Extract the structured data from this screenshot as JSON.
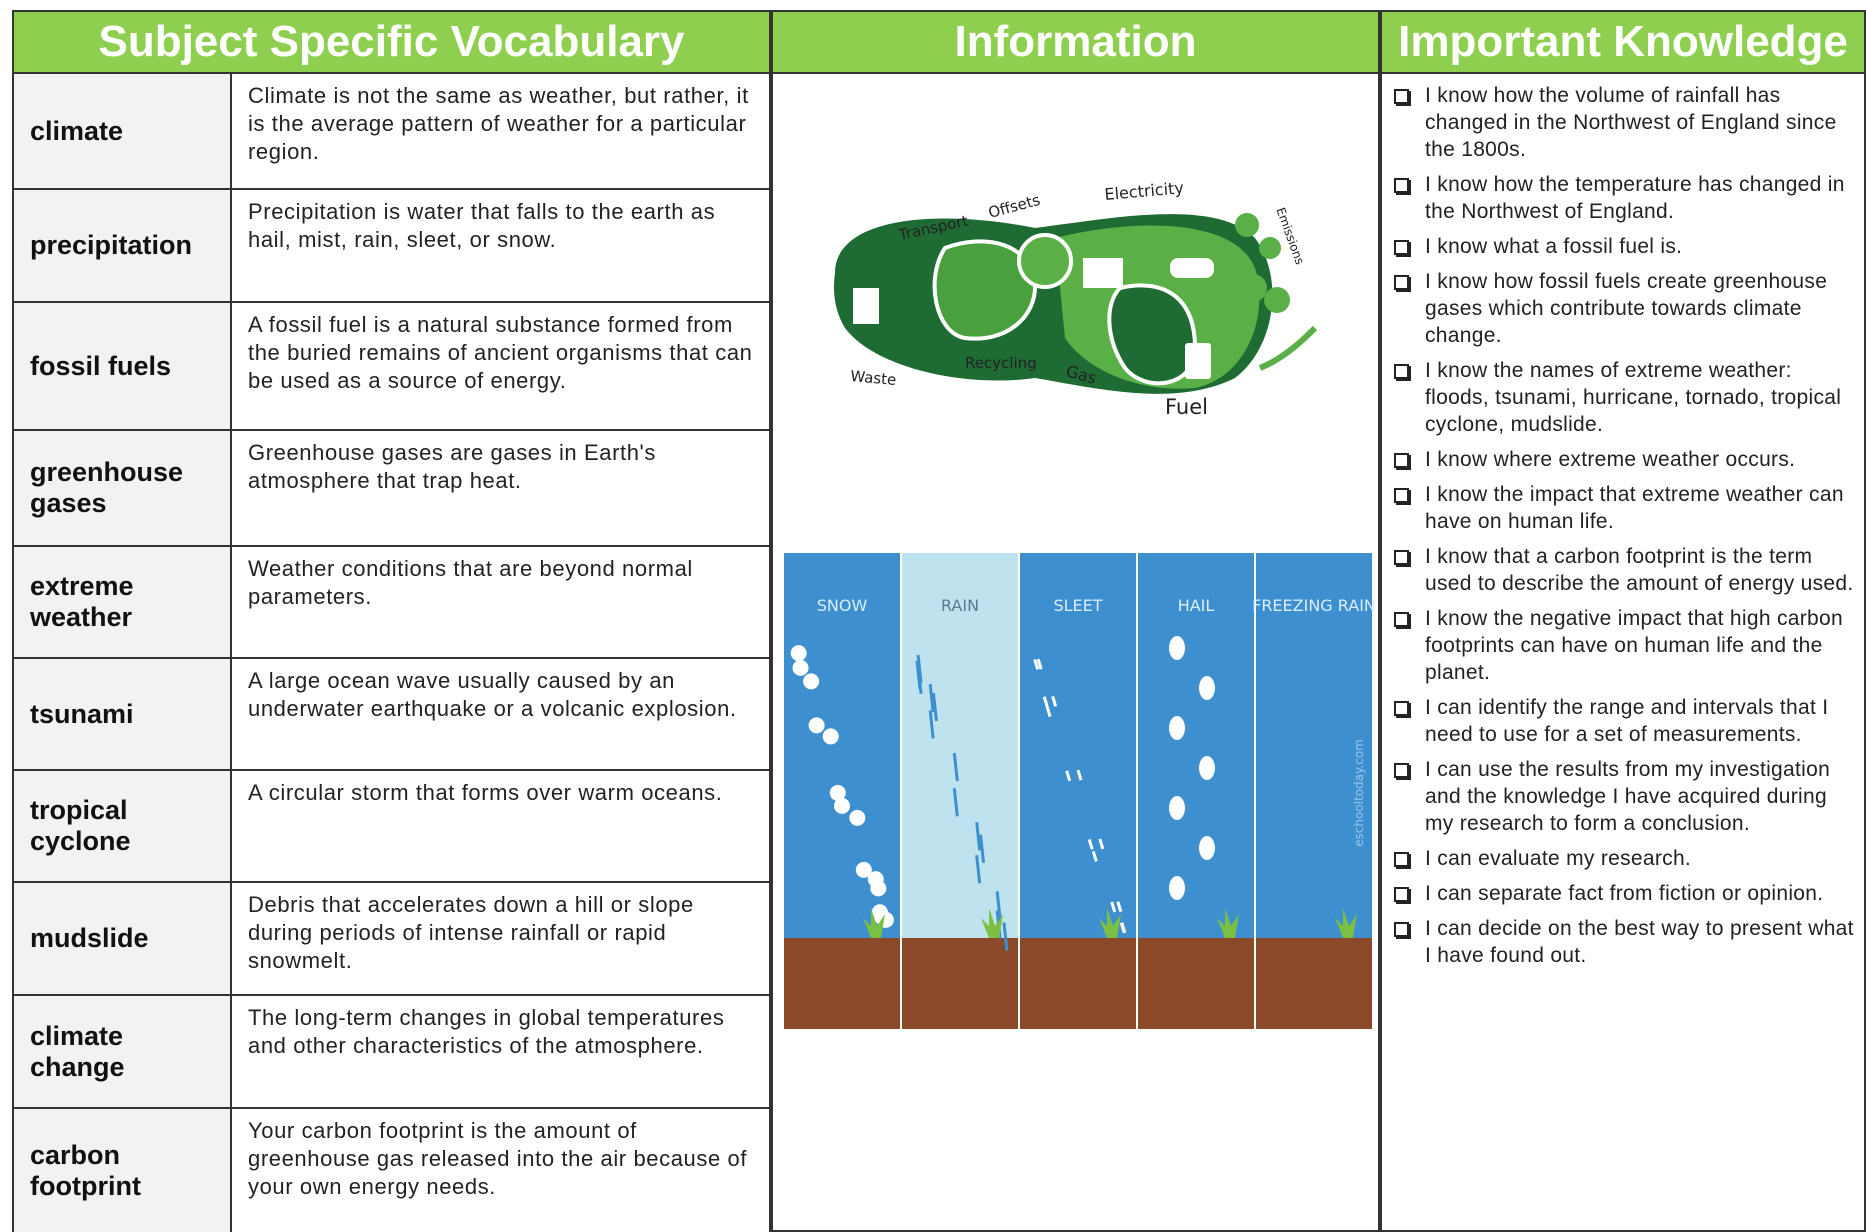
{
  "headers": {
    "vocabulary": "Subject Specific Vocabulary",
    "information": "Information",
    "knowledge": "Important Knowledge"
  },
  "vocabulary": [
    {
      "term": "climate",
      "definition": "Climate is not the same as weather, but rather, it is the average pattern of weather for a particular region."
    },
    {
      "term": "precipitation",
      "definition": "Precipitation is water that falls to the earth as hail, mist, rain, sleet, or snow."
    },
    {
      "term": "fossil fuels",
      "definition": "A fossil fuel is a natural substance formed from the buried remains of ancient organisms that can be used as a source of energy."
    },
    {
      "term": "greenhouse gases",
      "definition": "Greenhouse gases are gases in Earth's atmosphere that trap heat."
    },
    {
      "term": "extreme weather",
      "definition": "Weather conditions that are beyond normal parameters."
    },
    {
      "term": "tsunami",
      "definition": "A large ocean wave usually caused by an underwater earthquake or a volcanic explosion."
    },
    {
      "term": "tropical cyclone",
      "definition": "A circular storm that forms over warm oceans."
    },
    {
      "term": "mudslide",
      "definition": "Debris that accelerates down a hill or slope during periods of intense rainfall or rapid snowmelt."
    },
    {
      "term": "climate change",
      "definition": "The long-term changes in global temperatures and other characteristics of the atmosphere."
    },
    {
      "term": "carbon footprint",
      "definition": "Your carbon footprint is the amount of greenhouse gas released into the air because of your own energy needs."
    }
  ],
  "footprint": {
    "labels": [
      "Transport",
      "Offsets",
      "Electricity",
      "Emissions",
      "Waste",
      "Recycling",
      "Gas",
      "Fuel"
    ]
  },
  "weather": {
    "panels": [
      "SNOW",
      "RAIN",
      "SLEET",
      "HAIL",
      "FREEZING RAIN"
    ],
    "credit": "eschooltoday.com"
  },
  "knowledge": [
    "I know how the volume of rainfall has changed in the Northwest of England since the 1800s.",
    "I know how the temperature has changed in the Northwest of England.",
    "I know what a fossil fuel is.",
    "I know how fossil fuels create greenhouse gases which contribute towards climate change.",
    "I know the names of extreme weather: floods, tsunami, hurricane, tornado, tropical cyclone, mudslide.",
    "I know where extreme weather occurs.",
    "I know the impact that extreme weather can have on human life.",
    "I know that a carbon footprint is the term used to describe the amount of energy used.",
    "I know the negative impact that high carbon footprints can have on human life and the planet.",
    "I can identify the range and intervals that I need to use for a set of measurements.",
    "I can use the results from my investigation and the knowledge I have acquired during my research to form a conclusion.",
    "I can evaluate my research.",
    "I can separate fact from fiction or opinion.",
    "I can decide on the best way to present what I have found out."
  ]
}
